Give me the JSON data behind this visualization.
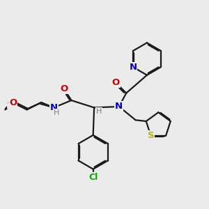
{
  "bg_color": "#ebebeb",
  "bond_color": "#1a1a1a",
  "bond_width": 1.6,
  "atom_colors": {
    "N": "#0000cc",
    "O": "#cc0000",
    "S": "#b8b800",
    "Cl": "#00aa00",
    "H": "#808080"
  }
}
